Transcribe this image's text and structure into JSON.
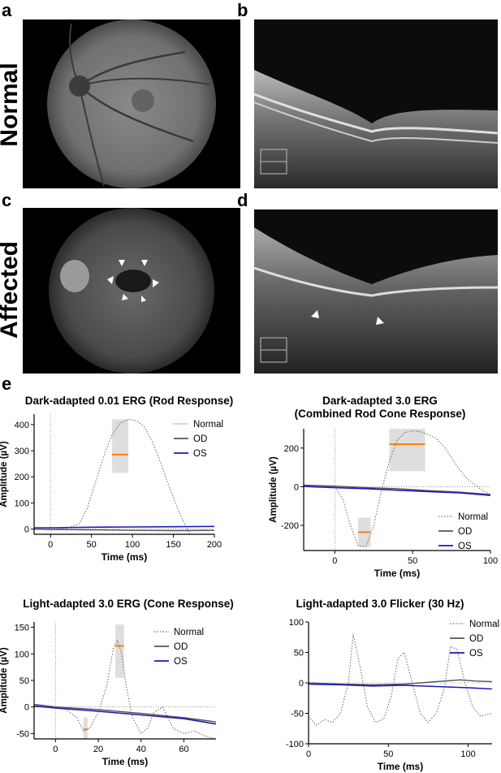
{
  "panels": {
    "a": "a",
    "b": "b",
    "c": "c",
    "d": "d",
    "e": "e",
    "row_normal": "Normal",
    "row_affected": "Affected"
  },
  "chart_data": [
    {
      "id": "rod",
      "type": "line",
      "title": "Dark-adapted 0.01 ERG (Rod Response)",
      "xlabel": "Time (ms)",
      "ylabel": "Amplitude (µV)",
      "xlim": [
        -20,
        200
      ],
      "ylim": [
        -20,
        440
      ],
      "xticks": [
        0,
        50,
        100,
        150,
        200
      ],
      "yticks": [
        0,
        100,
        200,
        300,
        400
      ],
      "legend": [
        "Normal",
        "OD",
        "OS"
      ],
      "series": [
        {
          "name": "Normal",
          "x": [
            -20,
            0,
            20,
            35,
            45,
            55,
            65,
            75,
            85,
            95,
            105,
            115,
            125,
            135,
            145,
            155,
            165,
            170
          ],
          "y": [
            0,
            0,
            2,
            20,
            80,
            180,
            280,
            360,
            405,
            420,
            415,
            390,
            330,
            250,
            160,
            80,
            10,
            -20
          ]
        },
        {
          "name": "OD",
          "x": [
            -20,
            0,
            50,
            100,
            150,
            200
          ],
          "y": [
            0,
            -2,
            -3,
            -5,
            -6,
            -5
          ]
        },
        {
          "name": "OS",
          "x": [
            -20,
            0,
            50,
            100,
            150,
            200
          ],
          "y": [
            5,
            5,
            7,
            8,
            9,
            10
          ]
        }
      ],
      "bands": [
        {
          "x0": 75,
          "x1": 95,
          "y0": 215,
          "y1": 420,
          "mid": 285
        }
      ]
    },
    {
      "id": "combined",
      "type": "line",
      "title": "Dark-adapted 3.0 ERG",
      "subtitle": "(Combined Rod Cone Response)",
      "xlabel": "Time (ms)",
      "ylabel": "Amplitude (µV)",
      "xlim": [
        -20,
        100
      ],
      "ylim": [
        -330,
        300
      ],
      "xticks": [
        0,
        50,
        100
      ],
      "yticks": [
        -200,
        0,
        200
      ],
      "legend": [
        "Normal",
        "OD",
        "OS"
      ],
      "series": [
        {
          "name": "Normal",
          "x": [
            -20,
            0,
            5,
            10,
            15,
            20,
            25,
            30,
            35,
            40,
            45,
            50,
            55,
            60,
            65,
            70,
            75,
            80,
            85,
            90,
            95,
            100
          ],
          "y": [
            5,
            0,
            -60,
            -200,
            -305,
            -310,
            -200,
            -20,
            130,
            240,
            280,
            290,
            285,
            270,
            250,
            210,
            150,
            90,
            40,
            10,
            -20,
            -40
          ]
        },
        {
          "name": "OD",
          "x": [
            -20,
            0,
            20,
            40,
            60,
            80,
            100
          ],
          "y": [
            8,
            3,
            -5,
            -10,
            -20,
            -28,
            -40
          ]
        },
        {
          "name": "OS",
          "x": [
            -20,
            0,
            20,
            40,
            60,
            80,
            100
          ],
          "y": [
            2,
            -5,
            -10,
            -18,
            -25,
            -32,
            -45
          ]
        }
      ],
      "bands": [
        {
          "x0": 35,
          "x1": 58,
          "y0": 80,
          "y1": 300,
          "mid": 220
        },
        {
          "x0": 15,
          "x1": 23,
          "y0": -310,
          "y1": -160,
          "mid": -235
        }
      ]
    },
    {
      "id": "cone",
      "type": "line",
      "title": "Light-adapted 3.0 ERG (Cone Response)",
      "xlabel": "Time (ms)",
      "ylabel": "Amplitude (µV)",
      "xlim": [
        -10,
        75
      ],
      "ylim": [
        -60,
        160
      ],
      "xticks": [
        0,
        20,
        40,
        60
      ],
      "yticks": [
        -50,
        0,
        50,
        100,
        150
      ],
      "legend": [
        "Normal",
        "OD",
        "OS"
      ],
      "series": [
        {
          "name": "Normal",
          "x": [
            -10,
            0,
            5,
            10,
            13,
            16,
            20,
            24,
            27,
            29,
            31,
            33,
            36,
            40,
            43,
            46,
            50,
            55,
            60,
            65,
            70,
            75
          ],
          "y": [
            0,
            0,
            -5,
            -20,
            -45,
            -40,
            -10,
            40,
            110,
            125,
            100,
            40,
            -20,
            -50,
            -40,
            -10,
            0,
            -40,
            -50,
            -45,
            -55,
            -60
          ]
        },
        {
          "name": "OD",
          "x": [
            -10,
            0,
            20,
            40,
            60,
            75
          ],
          "y": [
            5,
            0,
            -5,
            -12,
            -20,
            -28
          ]
        },
        {
          "name": "OS",
          "x": [
            -10,
            0,
            20,
            40,
            60,
            75
          ],
          "y": [
            2,
            -2,
            -8,
            -15,
            -22,
            -32
          ]
        }
      ],
      "bands": [
        {
          "x0": 28,
          "x1": 32,
          "y0": 55,
          "y1": 155,
          "mid": 115
        },
        {
          "x0": 13,
          "x1": 15,
          "y0": -60,
          "y1": -20,
          "mid": -42
        }
      ]
    },
    {
      "id": "flicker",
      "type": "line",
      "title": "Light-adapted 3.0 Flicker (30 Hz)",
      "xlabel": "Time (ms)",
      "ylabel": "",
      "xlim": [
        0,
        115
      ],
      "ylim": [
        -100,
        100
      ],
      "xticks": [
        0,
        50,
        100
      ],
      "yticks": [
        -100,
        -50,
        0,
        50,
        100
      ],
      "legend": [
        "Normal",
        "OD",
        "OS"
      ],
      "series": [
        {
          "name": "Normal",
          "x": [
            0,
            5,
            10,
            15,
            20,
            25,
            28,
            32,
            37,
            42,
            47,
            52,
            56,
            60,
            65,
            70,
            75,
            80,
            85,
            89,
            93,
            98,
            103,
            108,
            115
          ],
          "y": [
            -55,
            -70,
            -60,
            -65,
            -50,
            0,
            80,
            30,
            -40,
            -65,
            -60,
            -20,
            40,
            50,
            0,
            -50,
            -65,
            -50,
            -10,
            60,
            55,
            0,
            -40,
            -55,
            -50
          ]
        },
        {
          "name": "OD",
          "x": [
            0,
            20,
            40,
            60,
            80,
            95,
            105,
            115
          ],
          "y": [
            0,
            -2,
            -3,
            -2,
            2,
            5,
            3,
            2
          ]
        },
        {
          "name": "OS",
          "x": [
            0,
            20,
            40,
            60,
            80,
            100,
            115
          ],
          "y": [
            -2,
            -3,
            -5,
            -4,
            -6,
            -8,
            -10
          ]
        }
      ],
      "bands": []
    }
  ],
  "colors": {
    "normal": "#555555",
    "od": "#555555",
    "os": "#1a1ab4",
    "band": "#d8d8d8",
    "mid": "#ff7f0e"
  }
}
